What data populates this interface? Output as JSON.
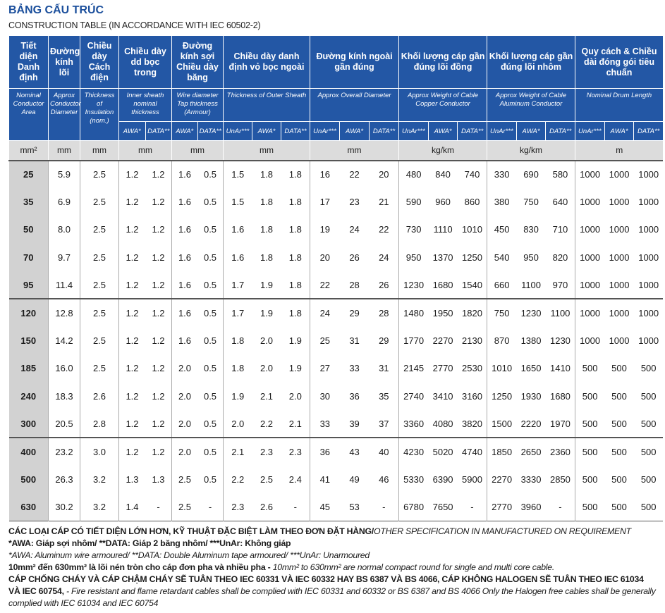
{
  "title": "BẢNG CẤU TRÚC",
  "subtitle": "CONSTRUCTION TABLE (IN ACCORDANCE WITH IEC 60502-2)",
  "table": {
    "columns": [
      {
        "vi": "Tiết diện Danh định",
        "en": "Nominal Conductor Area",
        "unit": "mm²"
      },
      {
        "vi": "Đường kính lõi",
        "en": "Approx Conductor Diameter",
        "unit": "mm"
      },
      {
        "vi": "Chiều dày Cách điện",
        "en": "Thickness of Insulation (nom.)",
        "unit": "mm"
      },
      {
        "vi": "Chiều dày dd bọc trong",
        "en": "Inner sheath nominal thickness",
        "unit": "mm",
        "sub": [
          "AWA*",
          "DATA**"
        ]
      },
      {
        "vi": "Đường kính sợi Chiều dày băng",
        "en": "Wire diameter Tap thickness (Armour)",
        "unit": "mm",
        "sub": [
          "AWA*",
          "DATA**"
        ]
      },
      {
        "vi": "Chiều dày danh định vỏ bọc ngoài",
        "en": "Thickness of Outer Sheath",
        "unit": "mm",
        "sub": [
          "UnAr***",
          "AWA*",
          "DATA**"
        ]
      },
      {
        "vi": "Đường kính ngoài gần đúng",
        "en": "Approx Overall Diameter",
        "unit": "mm",
        "sub": [
          "UnAr***",
          "AWA*",
          "DATA**"
        ]
      },
      {
        "vi": "Khối lượng cáp gần đúng lõi đồng",
        "en": "Approx Weight of Cable Copper Conductor",
        "unit": "kg/km",
        "sub": [
          "UnAr***",
          "AWA*",
          "DATA**"
        ]
      },
      {
        "vi": "Khối lượng cáp gần đúng lõi nhôm",
        "en": "Approx Weight of Cable Aluminum Conductor",
        "unit": "kg/km",
        "sub": [
          "UnAr***",
          "AWA*",
          "DATA**"
        ]
      },
      {
        "vi": "Quy cách & Chiều dài đóng gói tiêu chuẩn",
        "en": "Nominal Drum Length",
        "unit": "m",
        "sub": [
          "UnAr***",
          "AWA*",
          "DATA**"
        ]
      }
    ],
    "body": [
      [
        [
          "25",
          "5.9",
          "2.5",
          "1.2",
          "1.2",
          "1.6",
          "0.5",
          "1.5",
          "1.8",
          "1.8",
          "16",
          "22",
          "20",
          "480",
          "840",
          "740",
          "330",
          "690",
          "580",
          "1000",
          "1000",
          "1000"
        ],
        [
          "35",
          "6.9",
          "2.5",
          "1.2",
          "1.2",
          "1.6",
          "0.5",
          "1.5",
          "1.8",
          "1.8",
          "17",
          "23",
          "21",
          "590",
          "960",
          "860",
          "380",
          "750",
          "640",
          "1000",
          "1000",
          "1000"
        ],
        [
          "50",
          "8.0",
          "2.5",
          "1.2",
          "1.2",
          "1.6",
          "0.5",
          "1.6",
          "1.8",
          "1.8",
          "19",
          "24",
          "22",
          "730",
          "1110",
          "1010",
          "450",
          "830",
          "710",
          "1000",
          "1000",
          "1000"
        ],
        [
          "70",
          "9.7",
          "2.5",
          "1.2",
          "1.2",
          "1.6",
          "0.5",
          "1.6",
          "1.8",
          "1.8",
          "20",
          "26",
          "24",
          "950",
          "1370",
          "1250",
          "540",
          "950",
          "820",
          "1000",
          "1000",
          "1000"
        ],
        [
          "95",
          "11.4",
          "2.5",
          "1.2",
          "1.2",
          "1.6",
          "0.5",
          "1.7",
          "1.9",
          "1.8",
          "22",
          "28",
          "26",
          "1230",
          "1680",
          "1540",
          "660",
          "1100",
          "970",
          "1000",
          "1000",
          "1000"
        ]
      ],
      [
        [
          "120",
          "12.8",
          "2.5",
          "1.2",
          "1.2",
          "1.6",
          "0.5",
          "1.7",
          "1.9",
          "1.8",
          "24",
          "29",
          "28",
          "1480",
          "1950",
          "1820",
          "750",
          "1230",
          "1100",
          "1000",
          "1000",
          "1000"
        ],
        [
          "150",
          "14.2",
          "2.5",
          "1.2",
          "1.2",
          "1.6",
          "0.5",
          "1.8",
          "2.0",
          "1.9",
          "25",
          "31",
          "29",
          "1770",
          "2270",
          "2130",
          "870",
          "1380",
          "1230",
          "1000",
          "1000",
          "1000"
        ],
        [
          "185",
          "16.0",
          "2.5",
          "1.2",
          "1.2",
          "2.0",
          "0.5",
          "1.8",
          "2.0",
          "1.9",
          "27",
          "33",
          "31",
          "2145",
          "2770",
          "2530",
          "1010",
          "1650",
          "1410",
          "500",
          "500",
          "500"
        ],
        [
          "240",
          "18.3",
          "2.6",
          "1.2",
          "1.2",
          "2.0",
          "0.5",
          "1.9",
          "2.1",
          "2.0",
          "30",
          "36",
          "35",
          "2740",
          "3410",
          "3160",
          "1250",
          "1930",
          "1680",
          "500",
          "500",
          "500"
        ],
        [
          "300",
          "20.5",
          "2.8",
          "1.2",
          "1.2",
          "2.0",
          "0.5",
          "2.0",
          "2.2",
          "2.1",
          "33",
          "39",
          "37",
          "3360",
          "4080",
          "3820",
          "1500",
          "2220",
          "1970",
          "500",
          "500",
          "500"
        ]
      ],
      [
        [
          "400",
          "23.2",
          "3.0",
          "1.2",
          "1.2",
          "2.0",
          "0.5",
          "2.1",
          "2.3",
          "2.3",
          "36",
          "43",
          "40",
          "4230",
          "5020",
          "4740",
          "1850",
          "2650",
          "2360",
          "500",
          "500",
          "500"
        ],
        [
          "500",
          "26.3",
          "3.2",
          "1.3",
          "1.3",
          "2.5",
          "0.5",
          "2.2",
          "2.5",
          "2.4",
          "41",
          "49",
          "46",
          "5330",
          "6390",
          "5900",
          "2270",
          "3330",
          "2850",
          "500",
          "500",
          "500"
        ],
        [
          "630",
          "30.2",
          "3.2",
          "1.4",
          "-",
          "2.5",
          "-",
          "2.3",
          "2.6",
          "-",
          "45",
          "53",
          "-",
          "6780",
          "7650",
          "-",
          "2770",
          "3960",
          "-",
          "500",
          "500",
          "500"
        ]
      ]
    ]
  },
  "notes": [
    {
      "vi": "CÁC LOẠI CÁP CÓ TIẾT DIỆN LỚN HƠN, KỸ THUẬT ĐẶC BIỆT LÀM THEO ĐƠN ĐẶT HÀNG/",
      "en": "OTHER SPECIFICATION IN MANUFACTURED ON REQUIREMENT"
    },
    {
      "vi": "*AWA: Giáp sợi nhôm/ **DATA: Giáp 2 băng nhôm/ ***UnAr: Không giáp"
    },
    {
      "en": "*AWA: Aluminum wire armoured/ **DATA: Double Aluminum tape armoured/ ***UnAr: Unarmoured"
    },
    {
      "vi": "10mm² đến 630mm² là lõi nén tròn cho cáp đơn pha và nhiều pha - ",
      "en": "10mm² to 630mm² are normal compact round for single and multi core cable."
    },
    {
      "vi": "CÁP CHỐNG CHÁY VÀ CÁP CHẬM CHÁY SẼ TUÂN THEO IEC 60331 VÀ IEC 60332 HAY BS 6387 VÀ BS 4066, CÁP KHÔNG HALOGEN SẼ TUÂN THEO IEC 61034 VÀ IEC 60754,",
      "en": " - Fire resistant and flame retardant cables shall be complied with IEC 60331 and 60332 or BS 6387 and BS 4066 Only the Halogen free cables shall be generally complied with IEC 61034 and IEC 60754"
    }
  ]
}
